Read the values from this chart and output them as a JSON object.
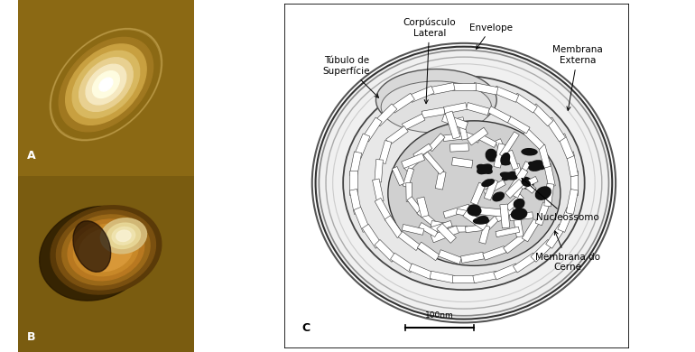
{
  "fig_width": 7.7,
  "fig_height": 3.9,
  "bg_color_A": "#8B6914",
  "bg_color_B": "#7A5C10",
  "label_A": "A",
  "label_B": "B",
  "label_C": "C",
  "panel_divider": 0.305,
  "annotations": {
    "corpusculo": "Corpúsculo\nLateral",
    "envelope": "Envelope",
    "membrana_externa": "Membrana\nExterna",
    "tubulo": "Túbulo de\nSuperfície",
    "nucleossomo": "Nucleossomo",
    "membrana_cerne": "Membrana do\nCerne",
    "scale_bar": "100nm"
  },
  "font_size_labels": 7.5,
  "font_size_abc": 9
}
